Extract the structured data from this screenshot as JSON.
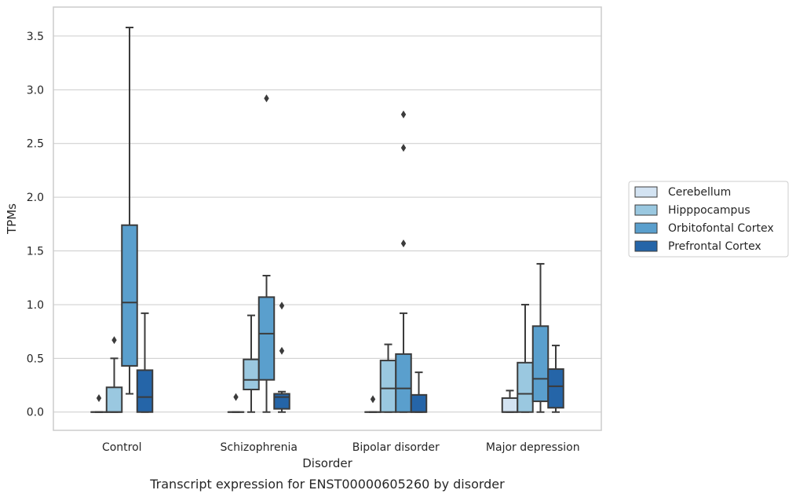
{
  "chart_data": {
    "type": "box",
    "xlabel": "Disorder",
    "ylabel": "TPMs",
    "caption": "Transcript expression for ENST00000605260 by disorder",
    "ylim": [
      -0.17,
      3.77
    ],
    "yticks": [
      "0.0",
      "0.5",
      "1.0",
      "1.5",
      "2.0",
      "2.5",
      "3.0",
      "3.5"
    ],
    "grid": "horizontal",
    "legend_position": "right",
    "categories": [
      "Control",
      "Schizophrenia",
      "Bipolar disorder",
      "Major depression"
    ],
    "series": [
      {
        "name": "Cerebellum",
        "color": "#d3e3f2",
        "boxes": [
          {
            "whislo": 0.0,
            "q1": 0.0,
            "med": 0.0,
            "q3": 0.0,
            "whishi": 0.0,
            "fliers": [
              0.13
            ]
          },
          {
            "whislo": 0.0,
            "q1": 0.0,
            "med": 0.0,
            "q3": 0.0,
            "whishi": 0.0,
            "fliers": [
              0.14
            ]
          },
          {
            "whislo": 0.0,
            "q1": 0.0,
            "med": 0.0,
            "q3": 0.0,
            "whishi": 0.0,
            "fliers": [
              0.12
            ]
          },
          {
            "whislo": 0.0,
            "q1": 0.0,
            "med": 0.0,
            "q3": 0.13,
            "whishi": 0.2,
            "fliers": []
          }
        ]
      },
      {
        "name": "Hipppocampus",
        "color": "#9ac8e0",
        "boxes": [
          {
            "whislo": 0.0,
            "q1": 0.0,
            "med": 0.0,
            "q3": 0.23,
            "whishi": 0.5,
            "fliers": [
              0.67
            ]
          },
          {
            "whislo": 0.0,
            "q1": 0.21,
            "med": 0.3,
            "q3": 0.49,
            "whishi": 0.9,
            "fliers": []
          },
          {
            "whislo": 0.0,
            "q1": 0.0,
            "med": 0.22,
            "q3": 0.48,
            "whishi": 0.63,
            "fliers": []
          },
          {
            "whislo": 0.0,
            "q1": 0.0,
            "med": 0.17,
            "q3": 0.46,
            "whishi": 1.0,
            "fliers": []
          }
        ]
      },
      {
        "name": "Orbitofontal Cortex",
        "color": "#5a9fcd",
        "boxes": [
          {
            "whislo": 0.17,
            "q1": 0.43,
            "med": 1.02,
            "q3": 1.74,
            "whishi": 3.58,
            "fliers": []
          },
          {
            "whislo": 0.0,
            "q1": 0.3,
            "med": 0.73,
            "q3": 1.07,
            "whishi": 1.27,
            "fliers": [
              2.92
            ]
          },
          {
            "whislo": 0.0,
            "q1": 0.0,
            "med": 0.22,
            "q3": 0.54,
            "whishi": 0.92,
            "fliers": [
              1.57,
              2.46,
              2.77
            ]
          },
          {
            "whislo": 0.0,
            "q1": 0.1,
            "med": 0.31,
            "q3": 0.8,
            "whishi": 1.38,
            "fliers": []
          }
        ]
      },
      {
        "name": "Prefrontal Cortex",
        "color": "#2565a8",
        "boxes": [
          {
            "whislo": 0.0,
            "q1": 0.0,
            "med": 0.14,
            "q3": 0.39,
            "whishi": 0.92,
            "fliers": []
          },
          {
            "whislo": 0.0,
            "q1": 0.03,
            "med": 0.14,
            "q3": 0.17,
            "whishi": 0.19,
            "fliers": [
              0.57,
              0.99
            ]
          },
          {
            "whislo": 0.0,
            "q1": 0.0,
            "med": 0.0,
            "q3": 0.16,
            "whishi": 0.37,
            "fliers": []
          },
          {
            "whislo": 0.0,
            "q1": 0.04,
            "med": 0.24,
            "q3": 0.4,
            "whishi": 0.62,
            "fliers": []
          }
        ]
      }
    ]
  }
}
